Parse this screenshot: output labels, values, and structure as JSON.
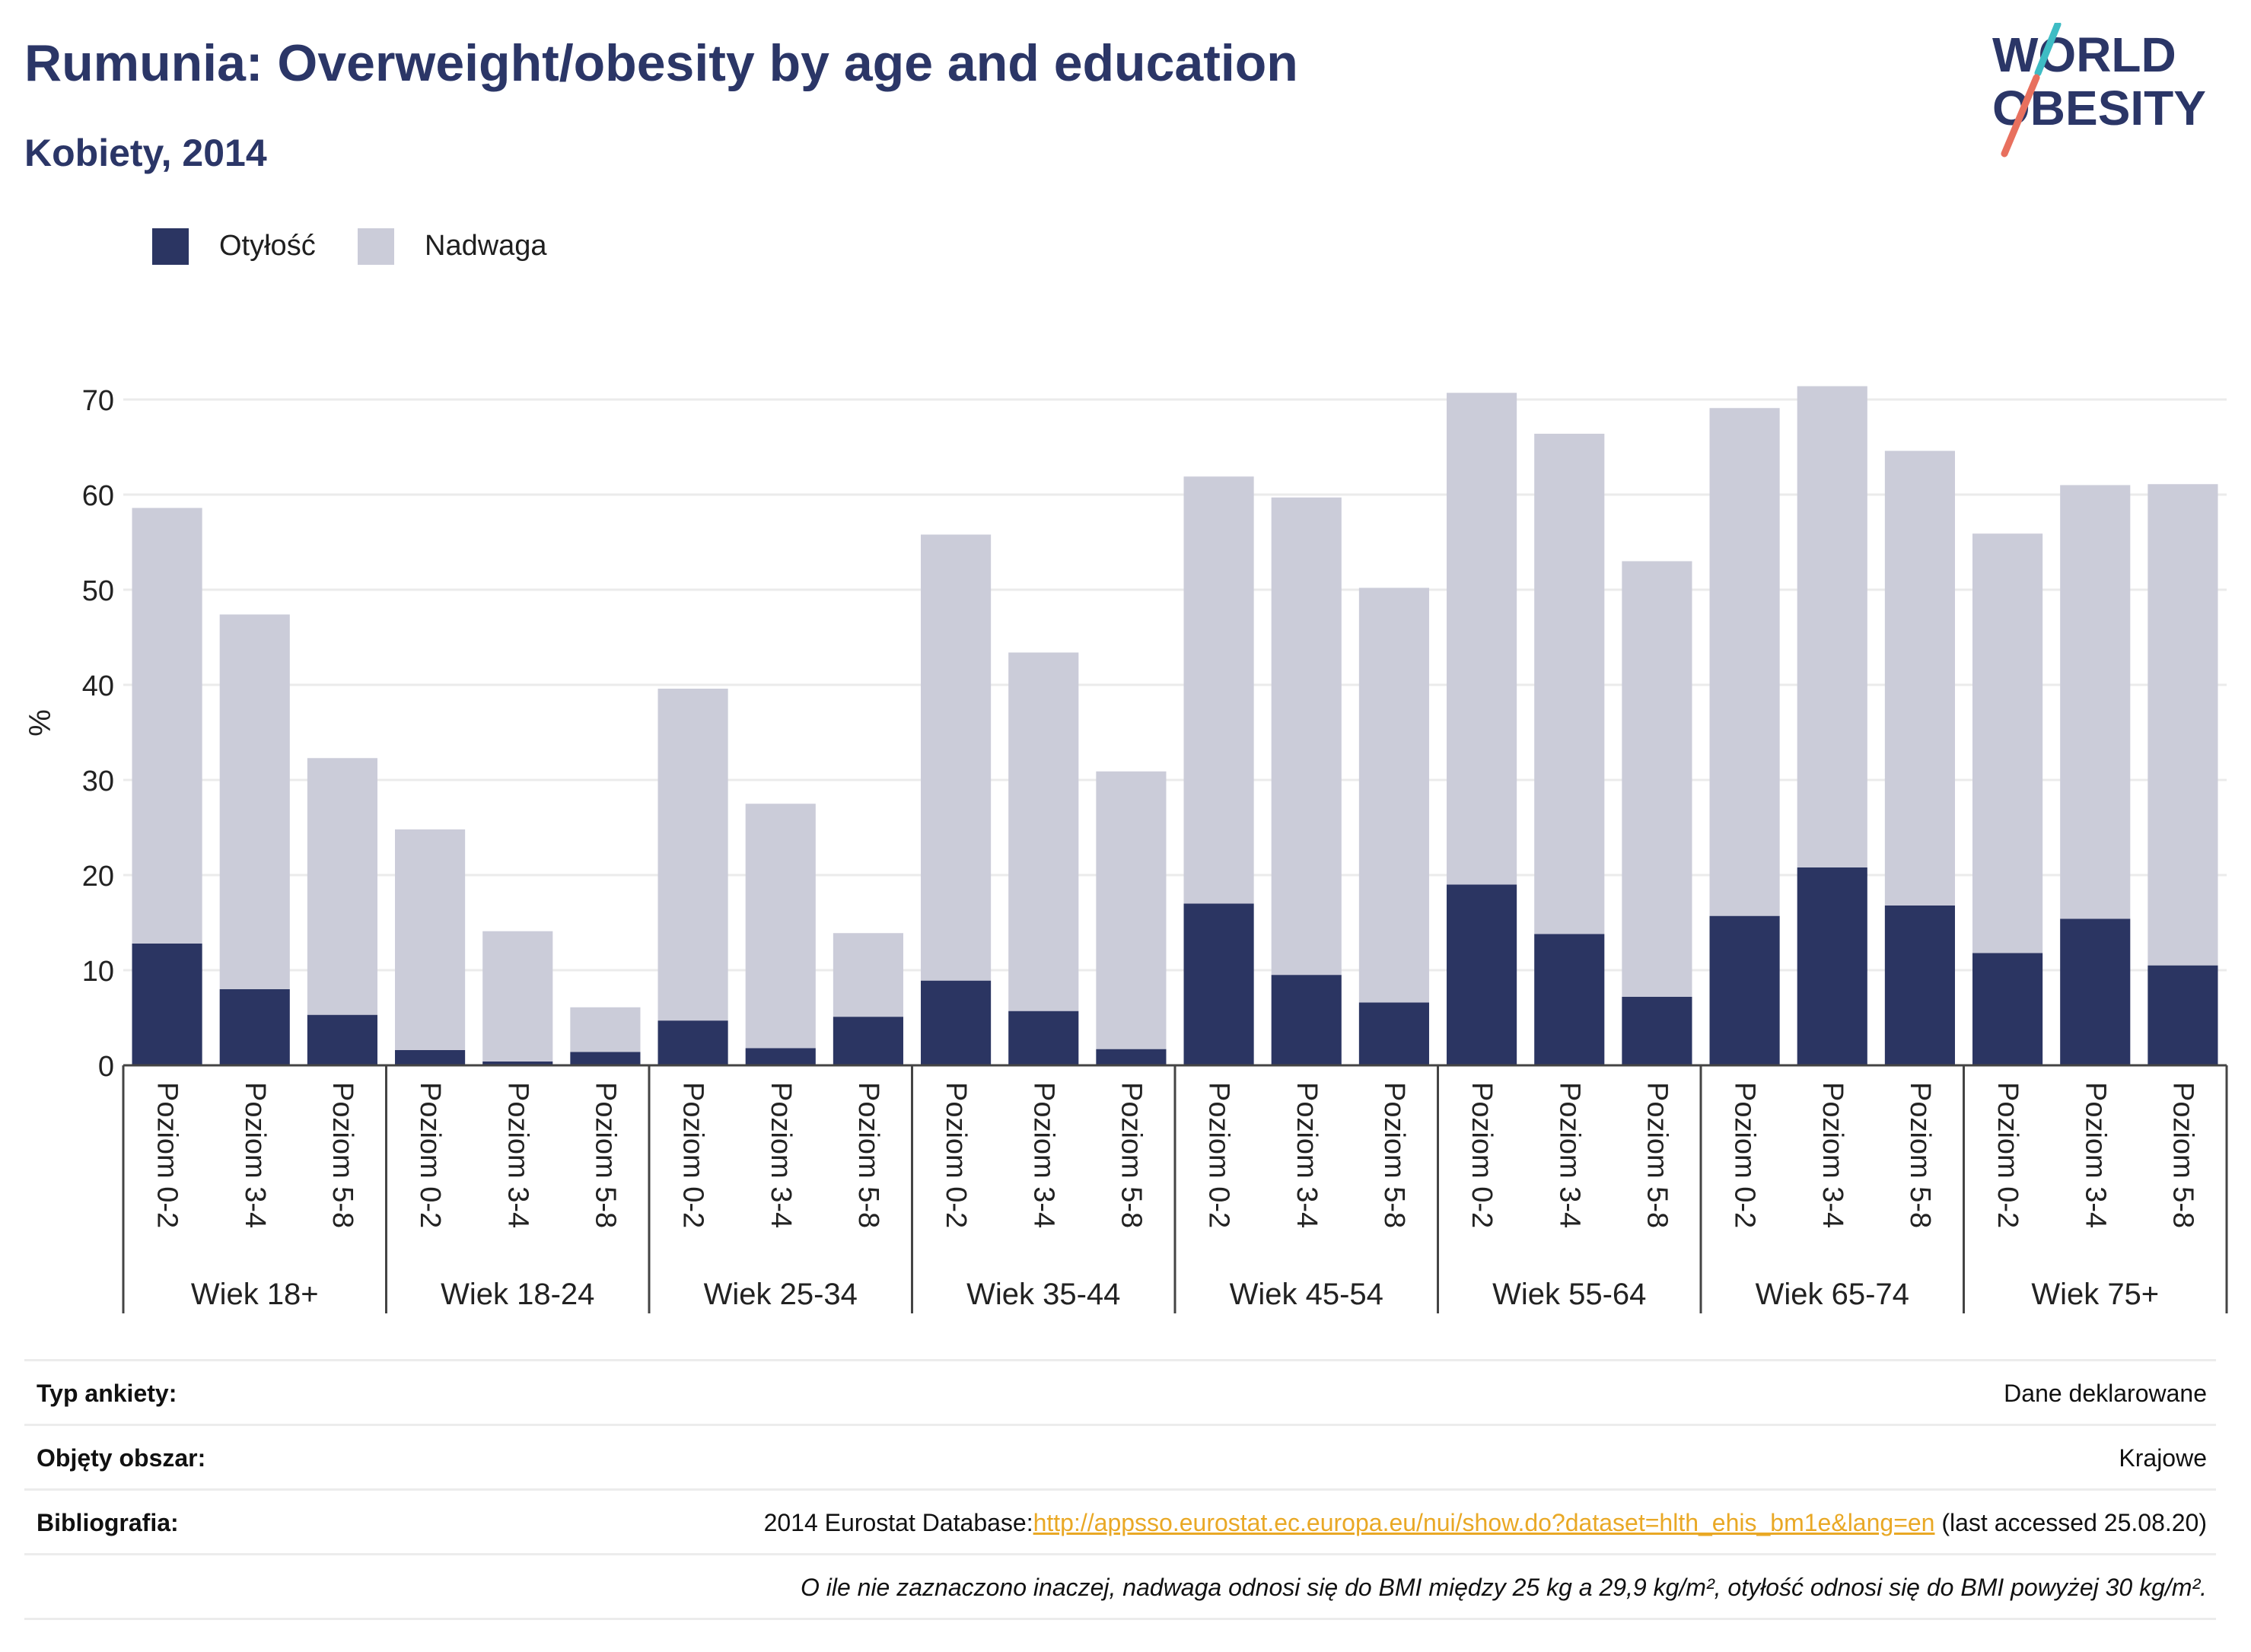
{
  "header": {
    "title": "Rumunia: Overweight/obesity by age and education",
    "subtitle": "Kobiety, 2014",
    "logo_line1": "WORLD",
    "logo_line2": "OBESITY"
  },
  "colors": {
    "title": "#2b3667",
    "obesity": "#2b3562",
    "overweight": "#cbccd9",
    "grid": "#ebebeb",
    "axis": "#444444",
    "link": "#e9a825",
    "logo_teal": "#3ebcc4",
    "logo_coral": "#e8705e"
  },
  "chart_data": {
    "type": "bar",
    "stacked": true,
    "title": "Rumunia: Overweight/obesity by age and education",
    "subtitle": "Kobiety, 2014",
    "ylabel": "%",
    "ylim": [
      0,
      72
    ],
    "yticks": [
      0,
      10,
      20,
      30,
      40,
      50,
      60,
      70
    ],
    "grid": true,
    "legend_position": "top-left",
    "groups": [
      "Wiek 18+",
      "Wiek 18-24",
      "Wiek 25-34",
      "Wiek 35-44",
      "Wiek 45-54",
      "Wiek 55-64",
      "Wiek 65-74",
      "Wiek 75+"
    ],
    "subcategories": [
      "Poziom 0-2",
      "Poziom 3-4",
      "Poziom 5-8"
    ],
    "series": [
      {
        "name": "Otyłość",
        "color": "#2b3562",
        "values": [
          12.8,
          8.0,
          5.3,
          1.6,
          0.4,
          1.4,
          4.7,
          1.8,
          5.1,
          8.9,
          5.7,
          1.7,
          17.0,
          9.5,
          6.6,
          19.0,
          13.8,
          7.2,
          15.7,
          20.8,
          16.8,
          11.8,
          15.4,
          10.5
        ]
      },
      {
        "name": "Nadwaga",
        "color": "#cbccd9",
        "values": [
          45.8,
          39.4,
          27.0,
          23.2,
          13.7,
          4.7,
          34.9,
          25.7,
          8.8,
          46.9,
          37.7,
          29.2,
          44.9,
          50.2,
          43.6,
          51.7,
          52.6,
          45.8,
          53.4,
          50.6,
          47.8,
          44.1,
          45.6,
          50.6
        ]
      }
    ]
  },
  "legend": [
    {
      "label": "Otyłość",
      "color": "#2b3562"
    },
    {
      "label": "Nadwaga",
      "color": "#cbccd9"
    }
  ],
  "info": {
    "survey_label": "Typ ankiety:",
    "survey_value": "Dane deklarowane",
    "coverage_label": "Objęty obszar:",
    "coverage_value": "Krajowe",
    "bibliography_label": "Bibliografia:",
    "bibliography_prefix": "2014 Eurostat Database:",
    "bibliography_link": "http://appsso.eurostat.ec.europa.eu/nui/show.do?dataset=hlth_ehis_bm1e&lang=en",
    "bibliography_suffix": " (last accessed 25.08.20)",
    "note": "O ile nie zaznaczono inaczej, nadwaga odnosi się do BMI między 25 kg a 29,9 kg/m², otyłość odnosi się do BMI powyżej 30 kg/m²."
  }
}
